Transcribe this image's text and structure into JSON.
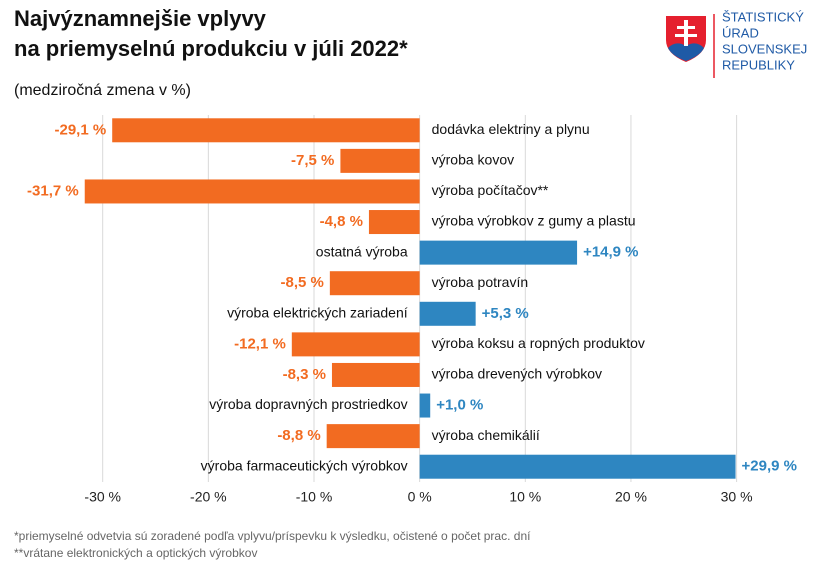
{
  "chart_data": {
    "type": "bar",
    "orientation": "horizontal",
    "title": [
      "Najvýznamnejšie vplyvy",
      "na priemyselnú produkciu v júli 2022*"
    ],
    "subtitle": "(medziročná zmena v %)",
    "categories": [
      "dodávka elektriny a plynu",
      "výroba kovov",
      "výroba počítačov**",
      "výroba výrobkov z gumy a plastu",
      "ostatná výroba",
      "výroba potravín",
      "výroba elektrických zariadení",
      "výroba koksu a ropných produktov",
      "výroba drevených výrobkov",
      "výroba dopravných prostriedkov",
      "výroba chemikálií",
      "výroba farmaceutických výrobkov"
    ],
    "values": [
      -29.1,
      -7.5,
      -31.7,
      -4.8,
      14.9,
      -8.5,
      5.3,
      -12.1,
      -8.3,
      1.0,
      -8.8,
      29.9
    ],
    "value_labels": [
      "-29,1 %",
      "-7,5 %",
      "-31,7 %",
      "-4,8 %",
      "+14,9 %",
      "-8,5 %",
      "+5,3 %",
      "-12,1 %",
      "-8,3 %",
      "+1,0 %",
      "-8,8 %",
      "+29,9 %"
    ],
    "colors": {
      "negative": "#f26b21",
      "positive": "#2e86c1"
    },
    "xlim": [
      -33,
      36
    ],
    "xticks": [
      {
        "value": -30,
        "label": "-30 %"
      },
      {
        "value": -20,
        "label": "-20 %"
      },
      {
        "value": -10,
        "label": "-10 %"
      },
      {
        "value": 0,
        "label": "0 %"
      },
      {
        "value": 10,
        "label": "10 %"
      },
      {
        "value": 20,
        "label": "20 %"
      },
      {
        "value": 30,
        "label": "30 %"
      }
    ],
    "grid": true,
    "footnotes": [
      "*priemyselné odvetvia sú zoradené podľa vplyvu/príspevku k výsledku, očistené o počet prac. dní",
      "**vrátane elektronických a optických výrobkov"
    ]
  },
  "logo": {
    "lines": [
      "ŠTATISTICKÝ",
      "ÚRAD",
      "SLOVENSKEJ",
      "REPUBLIKY"
    ]
  }
}
